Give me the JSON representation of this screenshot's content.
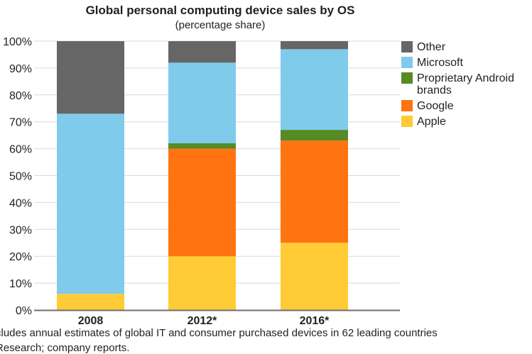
{
  "chart_data": {
    "type": "bar",
    "stacked": true,
    "title": "Global personal computing device sales by OS",
    "subtitle": "(percentage share)",
    "categories": [
      "2008",
      "2012*",
      "2016*"
    ],
    "series": [
      {
        "name": "Apple",
        "color": "#ffcb36",
        "values": [
          6,
          20,
          25
        ]
      },
      {
        "name": "Google",
        "color": "#ff7410",
        "values": [
          0,
          40,
          38
        ]
      },
      {
        "name": "Proprietary Android brands",
        "color": "#568b26",
        "values": [
          0,
          2,
          4
        ]
      },
      {
        "name": "Microsoft",
        "color": "#80caeb",
        "values": [
          67,
          30,
          30
        ]
      },
      {
        "name": "Other",
        "color": "#666666",
        "values": [
          27,
          8,
          3
        ]
      }
    ],
    "yticks": [
      "0%",
      "10%",
      "20%",
      "30%",
      "40%",
      "50%",
      "60%",
      "70%",
      "80%",
      "90%",
      "100%"
    ],
    "ylim": [
      0,
      100
    ],
    "grid": true,
    "legend": "right"
  },
  "footnotes": [
    "cludes annual estimates of global IT and consumer purchased devices in 62 leading countries",
    " Research; company reports."
  ]
}
